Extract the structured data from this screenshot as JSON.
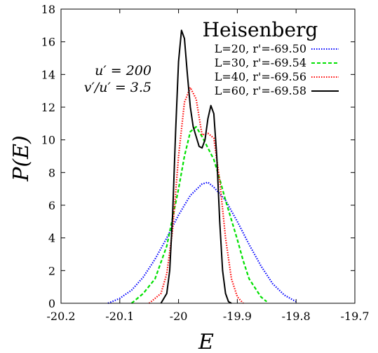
{
  "chart_data": {
    "type": "line",
    "title": "Heisenberg",
    "xlabel": "E",
    "ylabel": "P(E)",
    "xlim": [
      -20.2,
      -19.7
    ],
    "ylim": [
      0,
      18
    ],
    "xticks": [
      -20.2,
      -20.1,
      -20.0,
      -19.9,
      -19.8,
      -19.7
    ],
    "xtick_labels": [
      "-20.2",
      "-20.1",
      "-20",
      "-19.9",
      "-19.8",
      "-19.7"
    ],
    "yticks": [
      0,
      2,
      4,
      6,
      8,
      10,
      12,
      14,
      16,
      18
    ],
    "ytick_labels": [
      "0",
      "2",
      "4",
      "6",
      "8",
      "10",
      "12",
      "14",
      "16",
      "18"
    ],
    "grid": false,
    "legend_position": "top-right",
    "annotations": [
      "u′ = 200",
      "v′/u′ = 3.5"
    ],
    "series": [
      {
        "name": "L=20, r'=-69.50",
        "color": "#0000ff",
        "dash": "dotted",
        "x": [
          -20.12,
          -20.1,
          -20.08,
          -20.06,
          -20.04,
          -20.02,
          -20.0,
          -19.98,
          -19.96,
          -19.95,
          -19.94,
          -19.92,
          -19.9,
          -19.88,
          -19.86,
          -19.84,
          -19.82,
          -19.8
        ],
        "y": [
          0.0,
          0.3,
          0.8,
          1.6,
          2.7,
          4.0,
          5.4,
          6.6,
          7.3,
          7.4,
          7.1,
          6.3,
          5.0,
          3.6,
          2.3,
          1.2,
          0.5,
          0.1
        ]
      },
      {
        "name": "L=30, r'=-69.54",
        "color": "#00e000",
        "dash": "dashed",
        "x": [
          -20.08,
          -20.06,
          -20.04,
          -20.02,
          -20.0,
          -19.99,
          -19.98,
          -19.97,
          -19.96,
          -19.95,
          -19.94,
          -19.93,
          -19.92,
          -19.9,
          -19.89,
          -19.88,
          -19.86,
          -19.85
        ],
        "y": [
          0.0,
          0.6,
          1.5,
          3.5,
          7.0,
          9.0,
          10.5,
          10.8,
          10.2,
          9.5,
          8.8,
          7.6,
          6.3,
          3.9,
          2.6,
          1.5,
          0.4,
          0.1
        ]
      },
      {
        "name": "L=40, r'=-69.56",
        "color": "#ff0000",
        "dash": "dotted",
        "x": [
          -20.05,
          -20.03,
          -20.02,
          -20.01,
          -20.0,
          -19.99,
          -19.98,
          -19.97,
          -19.96,
          -19.95,
          -19.94,
          -19.93,
          -19.92,
          -19.91,
          -19.9,
          -19.89
        ],
        "y": [
          0.0,
          0.6,
          1.8,
          4.5,
          9.0,
          12.3,
          13.2,
          12.5,
          10.3,
          10.4,
          10.1,
          7.5,
          4.0,
          1.5,
          0.4,
          0.0
        ]
      },
      {
        "name": "L=60, r'=-69.58",
        "color": "#000000",
        "dash": "solid",
        "x": [
          -20.03,
          -20.02,
          -20.015,
          -20.01,
          -20.005,
          -20.0,
          -19.995,
          -19.99,
          -19.985,
          -19.98,
          -19.975,
          -19.97,
          -19.965,
          -19.96,
          -19.955,
          -19.95,
          -19.945,
          -19.94,
          -19.935,
          -19.93,
          -19.925,
          -19.92,
          -19.915,
          -19.91
        ],
        "y": [
          0.0,
          0.6,
          2.0,
          5.5,
          10.5,
          14.8,
          16.7,
          16.2,
          14.0,
          12.0,
          10.8,
          10.2,
          9.6,
          9.5,
          10.0,
          11.3,
          12.1,
          11.6,
          9.0,
          5.0,
          2.0,
          0.6,
          0.1,
          0.0
        ]
      }
    ]
  }
}
